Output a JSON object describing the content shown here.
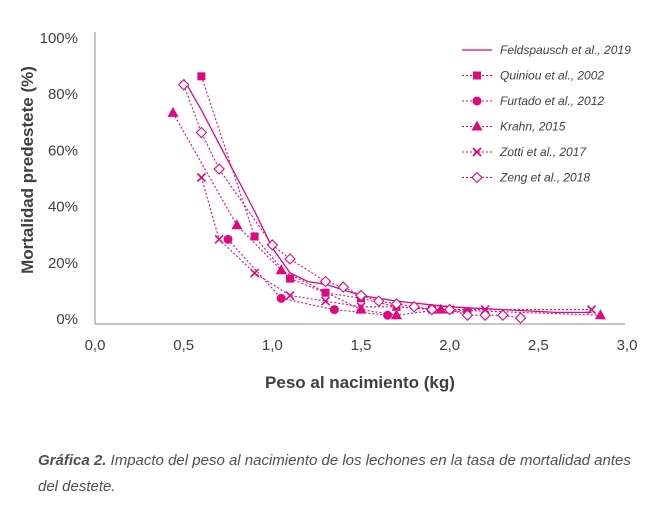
{
  "chart_data": {
    "type": "line",
    "title": "",
    "xlabel": "Peso al nacimiento (kg)",
    "ylabel": "Mortalidad predestete (%)",
    "xlim": [
      0,
      3
    ],
    "ylim": [
      0,
      100
    ],
    "x_ticks": [
      "0,0",
      "0,5",
      "1,0",
      "1,5",
      "2,0",
      "2,5",
      "3,0"
    ],
    "y_ticks": [
      "0%",
      "20%",
      "40%",
      "60%",
      "80%",
      "100%"
    ],
    "grid": false,
    "legend_position": "top-right",
    "color": "#e0087f",
    "series": [
      {
        "name": "Feldspausch et al., 2019",
        "marker": "none",
        "style": "solid",
        "x": [
          0.5,
          0.6,
          0.7,
          0.8,
          0.9,
          1.0,
          1.1,
          1.2,
          1.3,
          1.5,
          1.7,
          2.0,
          2.3,
          2.6,
          2.8
        ],
        "y": [
          85,
          74,
          62,
          50,
          38,
          25,
          16,
          13,
          12,
          8,
          6,
          4,
          3,
          2,
          2
        ]
      },
      {
        "name": "Quiniou et al., 2002",
        "marker": "square",
        "style": "dotted",
        "x": [
          0.6,
          0.9,
          1.1,
          1.3,
          1.5,
          1.7,
          1.9,
          2.1
        ],
        "y": [
          86,
          29,
          14,
          9,
          7,
          4,
          3,
          2
        ]
      },
      {
        "name": "Furtado et al., 2012",
        "marker": "circle",
        "style": "dotted",
        "x": [
          0.75,
          1.05,
          1.35,
          1.65
        ],
        "y": [
          28,
          7,
          3,
          1
        ]
      },
      {
        "name": "Krahn, 2015",
        "marker": "triangle",
        "style": "dotted",
        "x": [
          0.44,
          0.8,
          1.05,
          1.5,
          1.7,
          1.95,
          2.85
        ],
        "y": [
          73,
          33,
          17,
          3,
          1,
          3,
          1
        ]
      },
      {
        "name": "Zotti et al., 2017",
        "marker": "x",
        "style": "dotted",
        "x": [
          0.6,
          0.7,
          0.9,
          1.1,
          1.3,
          1.5,
          1.7,
          2.0,
          2.2,
          2.8
        ],
        "y": [
          50,
          28,
          16,
          8,
          6,
          4,
          4,
          3,
          3,
          3
        ]
      },
      {
        "name": "Zeng et al., 2018",
        "marker": "diamond",
        "style": "dotted",
        "x": [
          0.5,
          0.6,
          0.7,
          1.0,
          1.1,
          1.3,
          1.4,
          1.5,
          1.6,
          1.7,
          1.8,
          1.9,
          2.0,
          2.1,
          2.2,
          2.3,
          2.4
        ],
        "y": [
          83,
          66,
          53,
          26,
          21,
          13,
          11,
          8,
          6,
          5,
          4,
          3,
          3,
          1,
          1,
          1,
          0
        ]
      }
    ]
  },
  "caption": {
    "label": "Gráfica 2.",
    "text": "Impacto del peso al nacimiento de los lechones en la tasa de mortalidad antes del destete."
  }
}
